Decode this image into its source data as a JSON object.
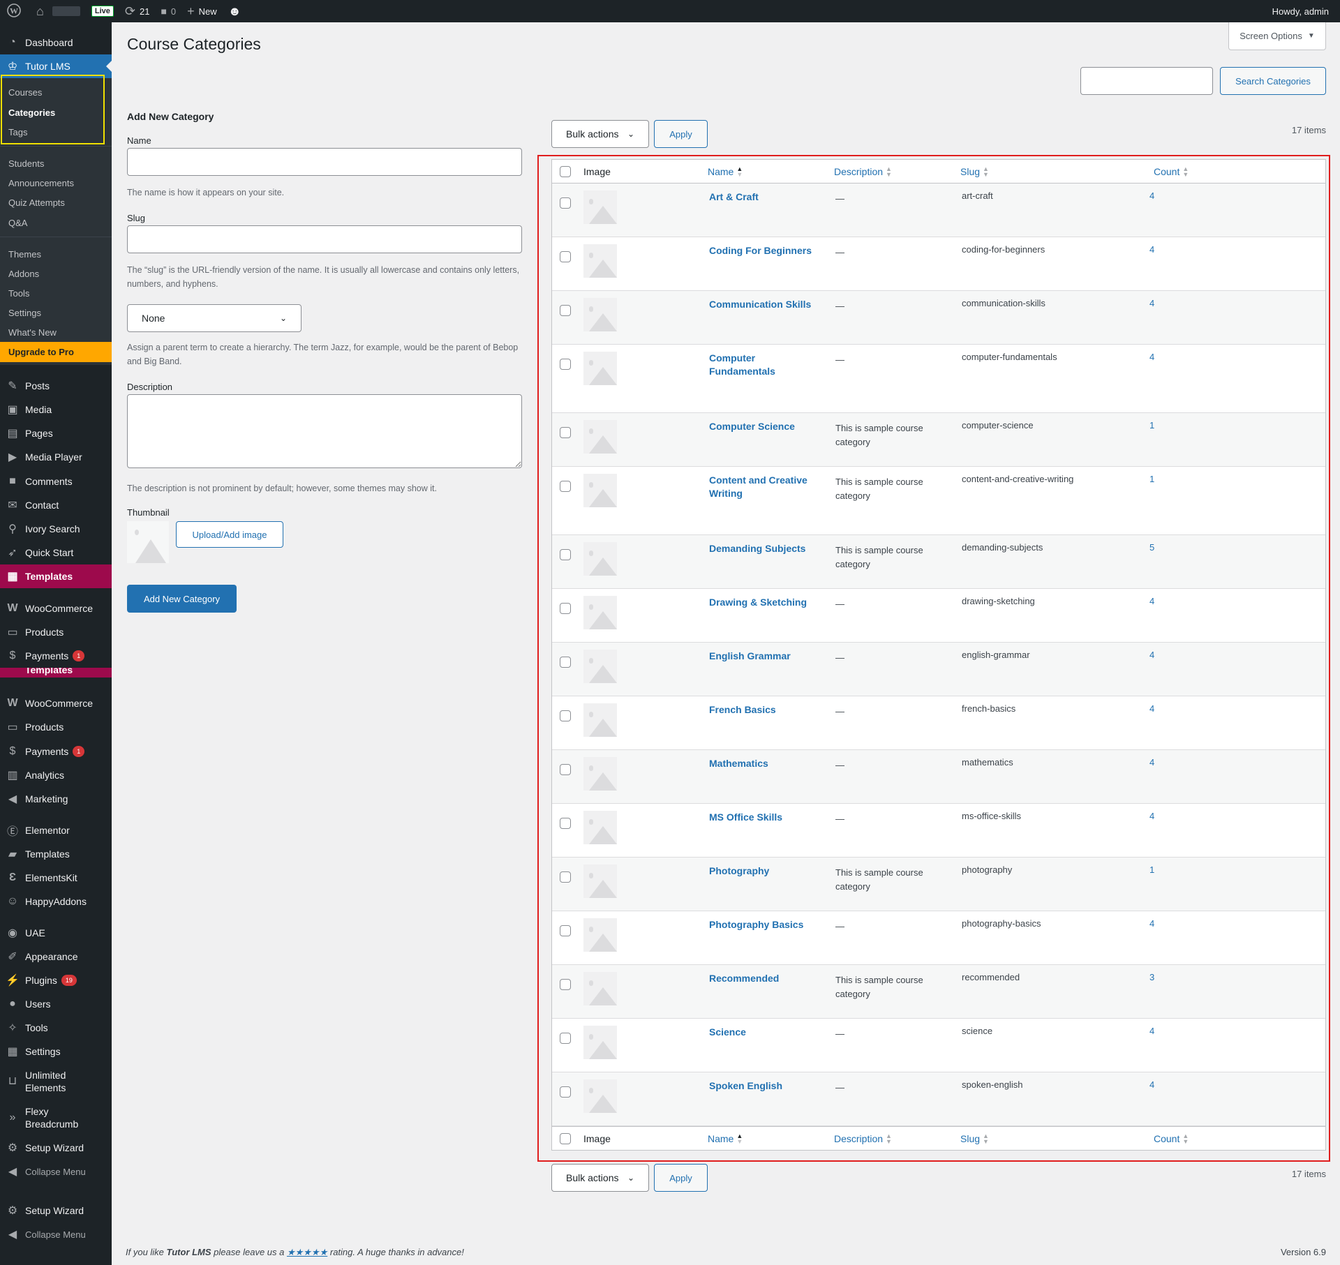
{
  "adminbar": {
    "wp_logo_icon": "wordpress-icon",
    "home_icon": "home-icon",
    "live_badge": "Live",
    "updates_count": "21",
    "comments_count": "0",
    "new_label": "New",
    "howdy": "Howdy, admin"
  },
  "sidebar": {
    "dashboard": "Dashboard",
    "tutor_lms": "Tutor LMS",
    "sub": [
      "Courses",
      "Categories",
      "Tags",
      "Students",
      "Announcements",
      "Quiz Attempts",
      "Q&A",
      "Themes",
      "Addons",
      "Tools",
      "Settings",
      "What's New"
    ],
    "upgrade": "Upgrade to Pro",
    "posts": "Posts",
    "media": "Media",
    "pages": "Pages",
    "media_player": "Media Player",
    "comments": "Comments",
    "contact": "Contact",
    "ivory_search": "Ivory Search",
    "quick_start": "Quick Start",
    "templates_highlight": "Templates",
    "woocommerce": "WooCommerce",
    "products": "Products",
    "payments": "Payments",
    "payments_badge": "1",
    "templates_clipped": "Templates",
    "woocommerce2": "WooCommerce",
    "products2": "Products",
    "payments2": "Payments",
    "payments2_badge": "1",
    "analytics": "Analytics",
    "marketing": "Marketing",
    "elementor": "Elementor",
    "templates": "Templates",
    "elementskit": "ElementsKit",
    "happyaddons": "HappyAddons",
    "uae": "UAE",
    "appearance": "Appearance",
    "plugins": "Plugins",
    "plugins_badge": "19",
    "users": "Users",
    "tools": "Tools",
    "settings": "Settings",
    "unlimited_1": "Unlimited",
    "unlimited_2": "Elements",
    "flexy_1": "Flexy",
    "flexy_2": "Breadcrumb",
    "setup_wizard": "Setup Wizard",
    "collapse": "Collapse Menu",
    "setup_wizard2": "Setup Wizard",
    "collapse2": "Collapse Menu"
  },
  "header": {
    "title": "Course Categories",
    "screen_options": "Screen Options"
  },
  "search": {
    "value": "",
    "button": "Search Categories"
  },
  "form": {
    "title": "Add New Category",
    "name_label": "Name",
    "name_value": "",
    "name_help": "The name is how it appears on your site.",
    "slug_label": "Slug",
    "slug_value": "",
    "slug_help": "The “slug” is the URL-friendly version of the name. It is usually all lowercase and contains only letters, numbers, and hyphens.",
    "parent_selected": "None",
    "parent_help": "Assign a parent term to create a hierarchy. The term Jazz, for example, would be the parent of Bebop and Big Band.",
    "description_label": "Description",
    "description_value": "",
    "description_help": "The description is not prominent by default; however, some themes may show it.",
    "thumbnail_label": "Thumbnail",
    "upload_button": "Upload/Add image",
    "submit_button": "Add New Category"
  },
  "table_controls": {
    "bulk_actions": "Bulk actions",
    "apply": "Apply",
    "items": "17 items"
  },
  "table": {
    "columns": {
      "image": "Image",
      "name": "Name",
      "description": "Description",
      "slug": "Slug",
      "count": "Count"
    },
    "rows": [
      {
        "name": "Art & Craft",
        "description": "—",
        "slug": "art-craft",
        "count": "4"
      },
      {
        "name": "Coding For Beginners",
        "description": "—",
        "slug": "coding-for-beginners",
        "count": "4"
      },
      {
        "name": "Communication Skills",
        "description": "—",
        "slug": "communication-skills",
        "count": "4"
      },
      {
        "name": "Computer Fundamentals",
        "description": "—",
        "slug": "computer-fundamentals",
        "count": "4"
      },
      {
        "name": "Computer Science",
        "description": "This is sample course category",
        "slug": "computer-science",
        "count": "1"
      },
      {
        "name": "Content and Creative Writing",
        "description": "This is sample course category",
        "slug": "content-and-creative-writing",
        "count": "1"
      },
      {
        "name": "Demanding Subjects",
        "description": "This is sample course category",
        "slug": "demanding-subjects",
        "count": "5"
      },
      {
        "name": "Drawing & Sketching",
        "description": "—",
        "slug": "drawing-sketching",
        "count": "4"
      },
      {
        "name": "English Grammar",
        "description": "—",
        "slug": "english-grammar",
        "count": "4"
      },
      {
        "name": "French Basics",
        "description": "—",
        "slug": "french-basics",
        "count": "4"
      },
      {
        "name": "Mathematics",
        "description": "—",
        "slug": "mathematics",
        "count": "4"
      },
      {
        "name": "MS Office Skills",
        "description": "—",
        "slug": "ms-office-skills",
        "count": "4"
      },
      {
        "name": "Photography",
        "description": "This is sample course category",
        "slug": "photography",
        "count": "1"
      },
      {
        "name": "Photography Basics",
        "description": "—",
        "slug": "photography-basics",
        "count": "4"
      },
      {
        "name": "Recommended",
        "description": "This is sample course category",
        "slug": "recommended",
        "count": "3"
      },
      {
        "name": "Science",
        "description": "—",
        "slug": "science",
        "count": "4"
      },
      {
        "name": "Spoken English",
        "description": "—",
        "slug": "spoken-english",
        "count": "4"
      }
    ]
  },
  "footer": {
    "text_before": "If you like ",
    "product": "Tutor LMS",
    "text_mid": " please leave us a ",
    "stars": "★★★★★",
    "text_after": " rating. A huge thanks in advance!",
    "version": "Version 6.9"
  },
  "colors": {
    "primary": "#2271b1",
    "sidebar_bg": "#1d2327",
    "templates_accent": "#9d0a4c",
    "upgrade_accent": "#ffa700",
    "highlight_box": "#f0e000",
    "table_highlight_box": "#e01e1e"
  }
}
